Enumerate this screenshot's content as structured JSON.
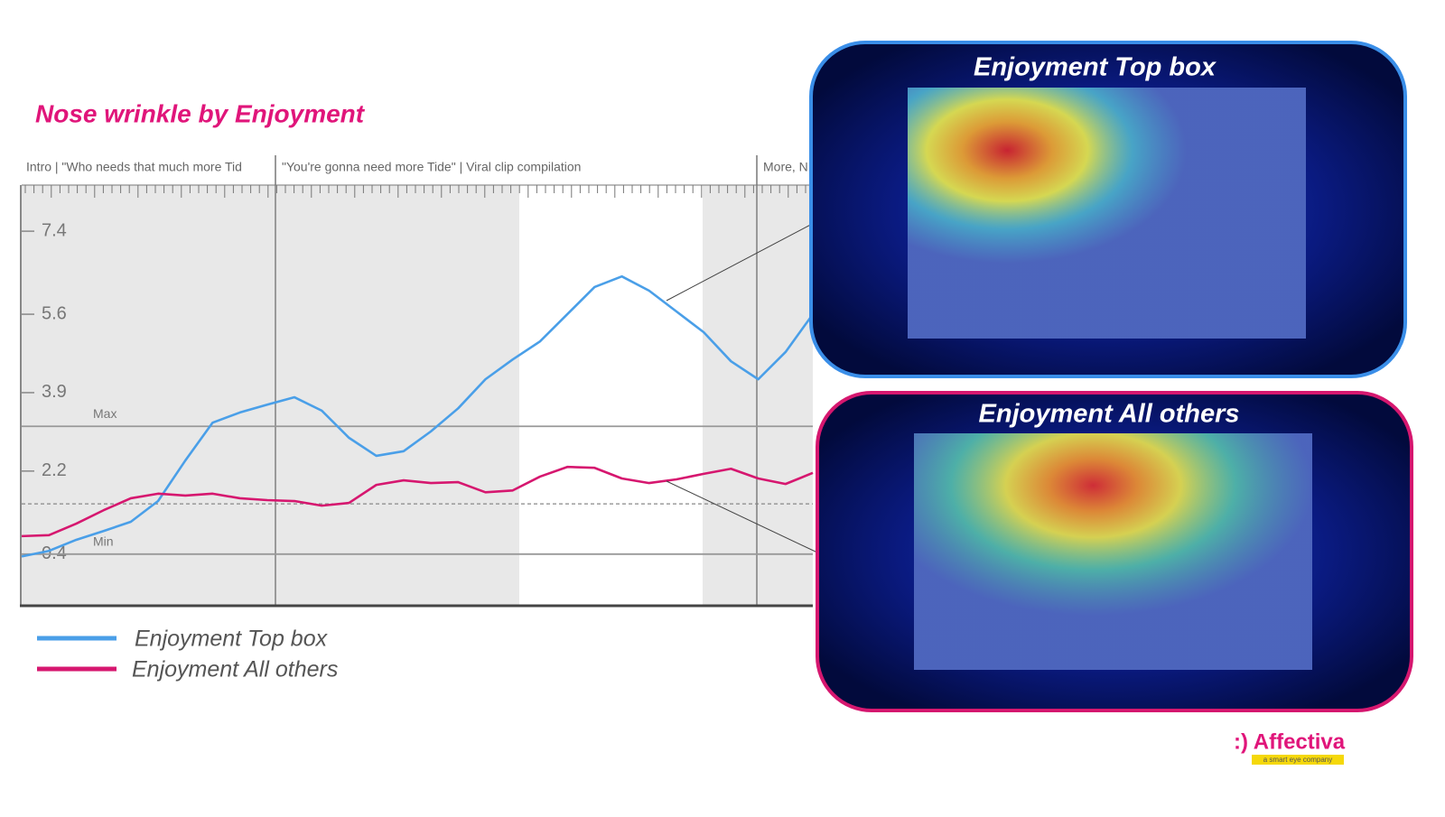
{
  "chart_data": {
    "type": "line",
    "title": "Nose wrinkle by Enjoyment",
    "segments": [
      "Intro | \"Who needs that much more Tid",
      "\"You're gonna need more Tide\" | Viral clip compilation",
      "More, N"
    ],
    "ylim": [
      -0.7,
      8.4
    ],
    "yticks": [
      0.4,
      2.2,
      3.9,
      5.6,
      7.4
    ],
    "reference_lines": [
      {
        "label": "Max",
        "value": 3.17
      },
      {
        "label": "Min",
        "value": 0.4
      },
      {
        "value": 1.49,
        "style": "dashed"
      }
    ],
    "series": [
      {
        "name": "Enjoyment Top box",
        "color": "#4a9fe8",
        "values": [
          0.35,
          0.47,
          0.71,
          0.9,
          1.1,
          1.55,
          2.43,
          3.25,
          3.47,
          3.64,
          3.8,
          3.51,
          2.92,
          2.53,
          2.63,
          3.06,
          3.56,
          4.19,
          4.62,
          5.01,
          5.6,
          6.19,
          6.42,
          6.11,
          5.66,
          5.21,
          4.58,
          4.19,
          4.78,
          5.6
        ]
      },
      {
        "name": "Enjoyment All others",
        "color": "#d6176f",
        "values": [
          0.79,
          0.81,
          1.06,
          1.35,
          1.61,
          1.71,
          1.67,
          1.71,
          1.61,
          1.57,
          1.55,
          1.45,
          1.51,
          1.9,
          2.0,
          1.94,
          1.96,
          1.74,
          1.78,
          2.08,
          2.29,
          2.27,
          2.04,
          1.94,
          2.02,
          2.14,
          2.25,
          2.04,
          1.92,
          2.16
        ]
      }
    ],
    "panels": [
      {
        "title": "Enjoyment Top box"
      },
      {
        "title": "Enjoyment All others"
      }
    ],
    "logo": {
      "name": ":) Affectiva",
      "tagline": "a smart eye company"
    }
  }
}
